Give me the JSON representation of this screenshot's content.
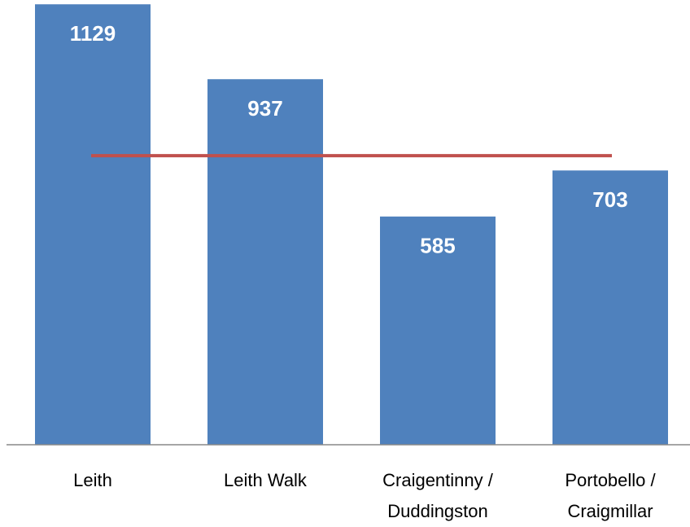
{
  "chart_data": {
    "type": "bar",
    "categories": [
      "Leith",
      "Leith Walk",
      "Craigentinny / Duddingston",
      "Portobello / Craigmillar"
    ],
    "values": [
      1129,
      937,
      585,
      703
    ],
    "color": "#4f81bd",
    "reference_value": 741,
    "reference_color": "#c0504d",
    "ylim": [
      0,
      1140
    ]
  }
}
